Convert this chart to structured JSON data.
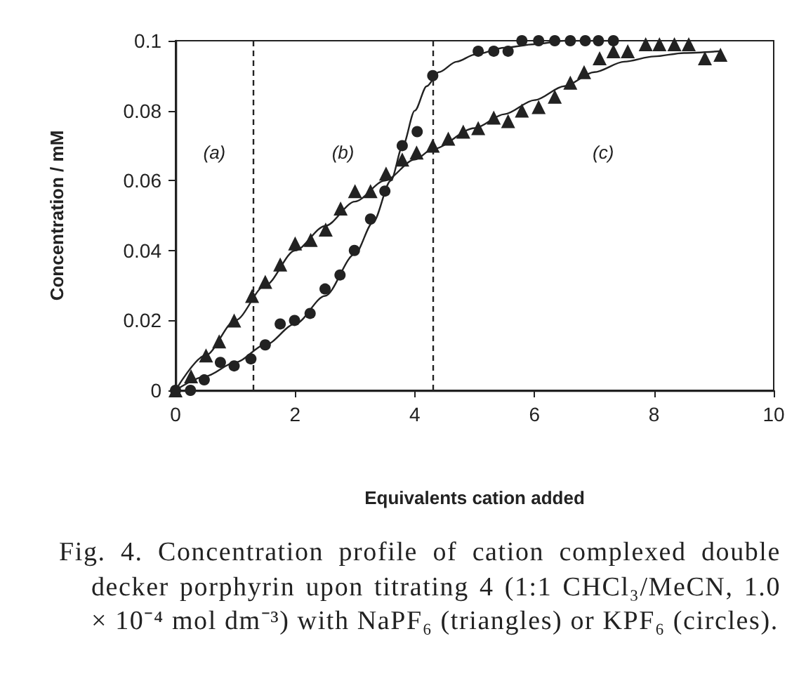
{
  "chart_data": {
    "type": "scatter",
    "xlabel": "Equivalents cation added",
    "ylabel": "Concentration / mM",
    "xlim": [
      0,
      10
    ],
    "xticks": [
      0,
      2,
      4,
      6,
      8,
      10
    ],
    "ylim": [
      0,
      0.1
    ],
    "yticks": [
      0,
      0.02,
      0.04,
      0.06,
      0.08,
      0.1
    ],
    "series": [
      {
        "marker": "circle",
        "color": "#222222",
        "x": [
          0,
          0.25,
          0.48,
          0.75,
          0.98,
          1.26,
          1.5,
          1.75,
          1.99,
          2.25,
          2.5,
          2.75,
          2.99,
          3.26,
          3.5,
          3.79,
          4.04,
          4.3,
          5.06,
          5.32,
          5.56,
          5.79,
          6.07,
          6.34,
          6.6,
          6.85,
          7.07,
          7.32
        ],
        "values": [
          0,
          0,
          0.003,
          0.008,
          0.007,
          0.009,
          0.013,
          0.019,
          0.02,
          0.022,
          0.029,
          0.033,
          0.04,
          0.049,
          0.057,
          0.07,
          0.074,
          0.09,
          0.097,
          0.097,
          0.097,
          0.1,
          0.1,
          0.1,
          0.1,
          0.1,
          0.1,
          0.1
        ]
      },
      {
        "marker": "triangle",
        "color": "#222222",
        "x": [
          0,
          0.26,
          0.51,
          0.73,
          0.98,
          1.28,
          1.5,
          1.75,
          2.0,
          2.26,
          2.51,
          2.76,
          3.0,
          3.26,
          3.52,
          3.79,
          4.03,
          4.3,
          4.56,
          4.81,
          5.06,
          5.32,
          5.56,
          5.79,
          6.07,
          6.34,
          6.6,
          6.83,
          7.09,
          7.32,
          7.56,
          7.86,
          8.09,
          8.34,
          8.58,
          8.85,
          9.11
        ],
        "values": [
          0,
          0.004,
          0.01,
          0.014,
          0.02,
          0.027,
          0.031,
          0.036,
          0.042,
          0.043,
          0.046,
          0.052,
          0.057,
          0.057,
          0.062,
          0.066,
          0.068,
          0.07,
          0.072,
          0.074,
          0.075,
          0.078,
          0.077,
          0.08,
          0.081,
          0.084,
          0.088,
          0.091,
          0.095,
          0.097,
          0.097,
          0.099,
          0.099,
          0.099,
          0.099,
          0.095,
          0.096
        ]
      },
      {
        "type": "line",
        "marker": "none",
        "line_style": "solid",
        "color": "#222222",
        "x": [
          0,
          0.5,
          1.0,
          1.5,
          2.0,
          2.5,
          3.0,
          3.5,
          4.0,
          4.3,
          5.0,
          5.5,
          6.0,
          6.5,
          7.0,
          7.5,
          8.0,
          8.5,
          9.1
        ],
        "values": [
          0,
          0.01,
          0.02,
          0.03,
          0.04,
          0.047,
          0.054,
          0.06,
          0.066,
          0.069,
          0.075,
          0.079,
          0.083,
          0.087,
          0.091,
          0.094,
          0.0955,
          0.0965,
          0.097
        ]
      },
      {
        "type": "line",
        "marker": "none",
        "line_style": "solid",
        "color": "#222222",
        "x": [
          0,
          0.5,
          1.0,
          1.5,
          2.0,
          2.5,
          3.0,
          3.3,
          3.6,
          3.8,
          4.0,
          4.2,
          4.4,
          4.7,
          5.0,
          5.5,
          6.0,
          6.5,
          7.3
        ],
        "values": [
          0,
          0.004,
          0.008,
          0.013,
          0.019,
          0.027,
          0.039,
          0.048,
          0.06,
          0.07,
          0.08,
          0.087,
          0.091,
          0.094,
          0.096,
          0.098,
          0.099,
          0.1,
          0.1
        ]
      }
    ],
    "ref_lines": [
      {
        "axis": "x",
        "value": 1.3,
        "line_style": "dashed",
        "color": "#222222"
      },
      {
        "axis": "x",
        "value": 4.3,
        "line_style": "dashed",
        "color": "#222222"
      }
    ],
    "annotations": [
      "(a)",
      "(b)",
      "(c)",
      "Fig. 4. Concentration profile of cation complexed double decker porphyrin upon titrating 4 (1:1 CHCl₃/MeCN, 1.0 × 10⁻⁴ mol dm⁻³) with NaPF₆ (triangles) or KPF₆ (circles)."
    ]
  }
}
